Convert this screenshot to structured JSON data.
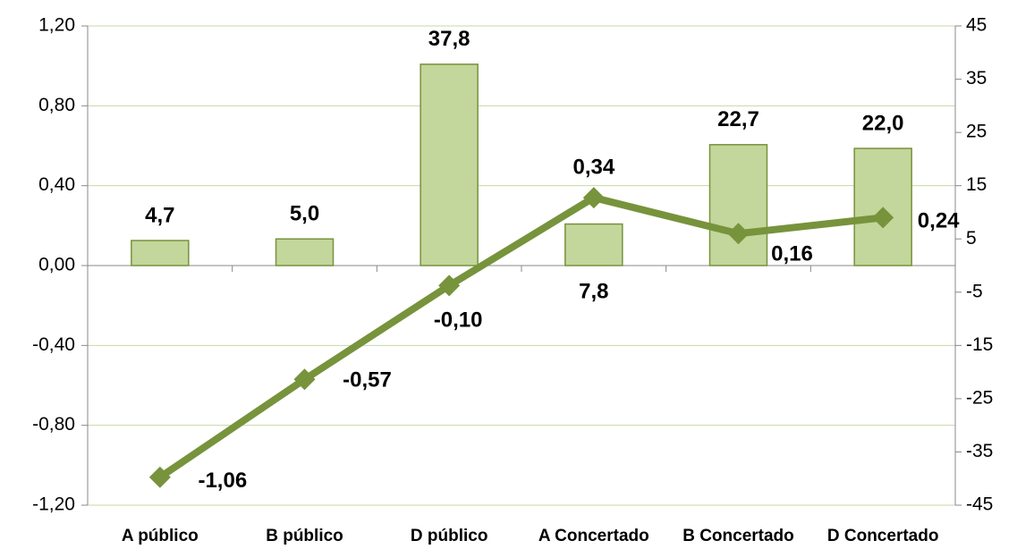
{
  "chart_data": {
    "type": "combo",
    "categories": [
      "A público",
      "B público",
      "D público",
      "A Concertado",
      "B Concertado",
      "D Concertado"
    ],
    "series": [
      {
        "type": "bar",
        "axis": "y2",
        "color": "#c3d69b",
        "values": [
          4.7,
          5.0,
          37.8,
          7.8,
          22.7,
          22.0
        ],
        "value_labels": [
          "4,7",
          "5,0",
          "37,8",
          "7,8",
          "22,7",
          "22,0"
        ]
      },
      {
        "type": "line",
        "color": "#77933c",
        "values": [
          -1.06,
          -0.57,
          -0.1,
          0.34,
          0.16,
          0.24
        ],
        "value_labels": [
          "-1,06",
          "-0,57",
          "-0,10",
          "0,34",
          "0,16",
          "0,24"
        ]
      }
    ],
    "ylim": [
      -1.2,
      1.2
    ],
    "yticks": [
      {
        "value": -1.2,
        "label": "-1,20"
      },
      {
        "value": -0.8,
        "label": "-0,80"
      },
      {
        "value": -0.4,
        "label": "-0,40"
      },
      {
        "value": 0,
        "label": "0,00"
      },
      {
        "value": 0.4,
        "label": "0,40"
      },
      {
        "value": 0.8,
        "label": "0,80"
      },
      {
        "value": 1.2,
        "label": "1,20"
      }
    ],
    "y2lim": [
      -45,
      45
    ],
    "y2ticks": [
      -45,
      -35,
      -25,
      -15,
      -5,
      5,
      15,
      25,
      35,
      45
    ],
    "grid": true
  }
}
